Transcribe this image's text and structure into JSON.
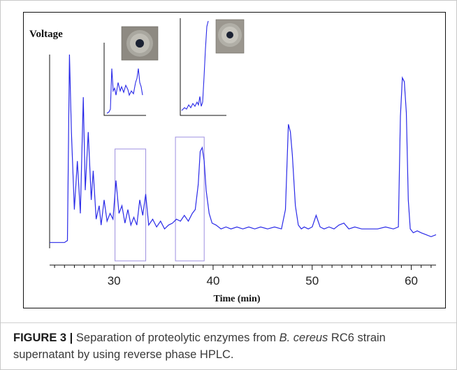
{
  "figure": {
    "caption_label": "FIGURE 3 |",
    "caption_part1": " Separation of proteolytic enzymes from ",
    "caption_species": "B. cereus",
    "caption_part2": " RC6 strain supernatant by using reverse phase HPLC."
  },
  "chart_data": {
    "type": "line",
    "ylabel": "Voltage",
    "xlabel": "Time (min)",
    "xlim": [
      23.5,
      62.5
    ],
    "ylim": [
      0,
      100
    ],
    "x_ticks": [
      30,
      40,
      50,
      60
    ],
    "grid": false,
    "legend": "none",
    "series": [
      {
        "x": [
          23.5,
          25.0,
          25.3,
          25.5,
          25.7,
          26.0,
          26.3,
          26.6,
          26.9,
          27.1,
          27.4,
          27.7,
          27.9,
          28.2,
          28.5,
          28.7,
          29.0,
          29.3,
          29.6,
          29.9,
          30.2,
          30.5,
          30.8,
          31.1,
          31.4,
          31.7,
          32.0,
          32.3,
          32.6,
          32.9,
          33.2,
          33.5,
          33.9,
          34.3,
          34.7,
          35.1,
          35.5,
          35.9,
          36.3,
          36.7,
          37.1,
          37.5,
          37.9,
          38.2,
          38.5,
          38.7,
          38.9,
          39.1,
          39.3,
          39.6,
          39.9,
          40.3,
          40.8,
          41.3,
          41.8,
          42.4,
          43.0,
          43.6,
          44.2,
          44.8,
          45.5,
          46.2,
          46.9,
          47.3,
          47.6,
          47.8,
          48.0,
          48.3,
          48.6,
          48.9,
          49.2,
          49.6,
          50.0,
          50.4,
          50.8,
          51.2,
          51.7,
          52.2,
          52.7,
          53.2,
          53.7,
          54.3,
          55.0,
          55.8,
          56.6,
          57.4,
          58.2,
          58.7,
          58.9,
          59.1,
          59.3,
          59.5,
          59.7,
          59.9,
          60.2,
          60.6,
          61.0,
          61.5,
          62.0,
          62.5
        ],
        "values": [
          3,
          3,
          4,
          100,
          60,
          20,
          45,
          18,
          78,
          30,
          60,
          25,
          40,
          15,
          22,
          12,
          25,
          14,
          18,
          15,
          35,
          18,
          22,
          13,
          20,
          12,
          16,
          12,
          25,
          17,
          28,
          12,
          15,
          11,
          14,
          10,
          12,
          13,
          15,
          14,
          17,
          14,
          18,
          20,
          33,
          50,
          52,
          45,
          30,
          18,
          13,
          12,
          10,
          11,
          10,
          11,
          10,
          11,
          10,
          11,
          10,
          11,
          10,
          20,
          64,
          60,
          48,
          22,
          12,
          10,
          11,
          10,
          11,
          17,
          11,
          10,
          11,
          10,
          12,
          13,
          10,
          11,
          10,
          10,
          10,
          11,
          10,
          11,
          68,
          88,
          86,
          70,
          25,
          10,
          8,
          9,
          8,
          7,
          6,
          7
        ]
      }
    ],
    "inset_charts": 2,
    "highlight_ranges": [
      [
        30.1,
        33.2
      ],
      [
        36.2,
        39.1
      ]
    ]
  }
}
